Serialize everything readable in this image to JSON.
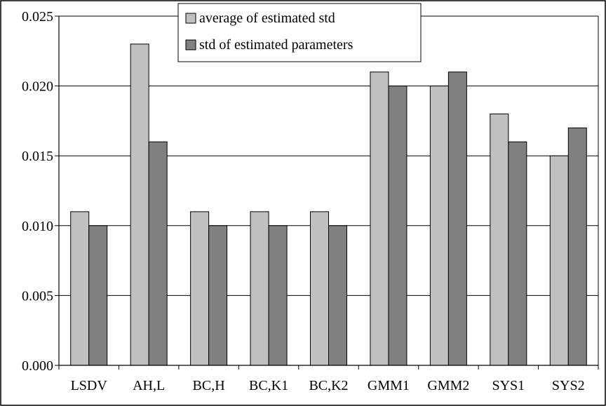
{
  "chart_data": {
    "type": "bar",
    "title": "",
    "xlabel": "",
    "ylabel": "",
    "categories": [
      "LSDV",
      "AH,L",
      "BC,H",
      "BC,K1",
      "BC,K2",
      "GMM1",
      "GMM2",
      "SYS1",
      "SYS2"
    ],
    "series": [
      {
        "name": "average of estimated std",
        "color": "#c0c0c0",
        "values": [
          0.011,
          0.023,
          0.011,
          0.011,
          0.011,
          0.021,
          0.02,
          0.018,
          0.015
        ]
      },
      {
        "name": "std of estimated parameters",
        "color": "#808080",
        "values": [
          0.01,
          0.016,
          0.01,
          0.01,
          0.01,
          0.02,
          0.021,
          0.016,
          0.017
        ]
      }
    ],
    "ylim": [
      0,
      0.025
    ],
    "yticks": [
      "0.000",
      "0.005",
      "0.010",
      "0.015",
      "0.020",
      "0.025"
    ],
    "grid": true,
    "legend_position": "top-center"
  }
}
